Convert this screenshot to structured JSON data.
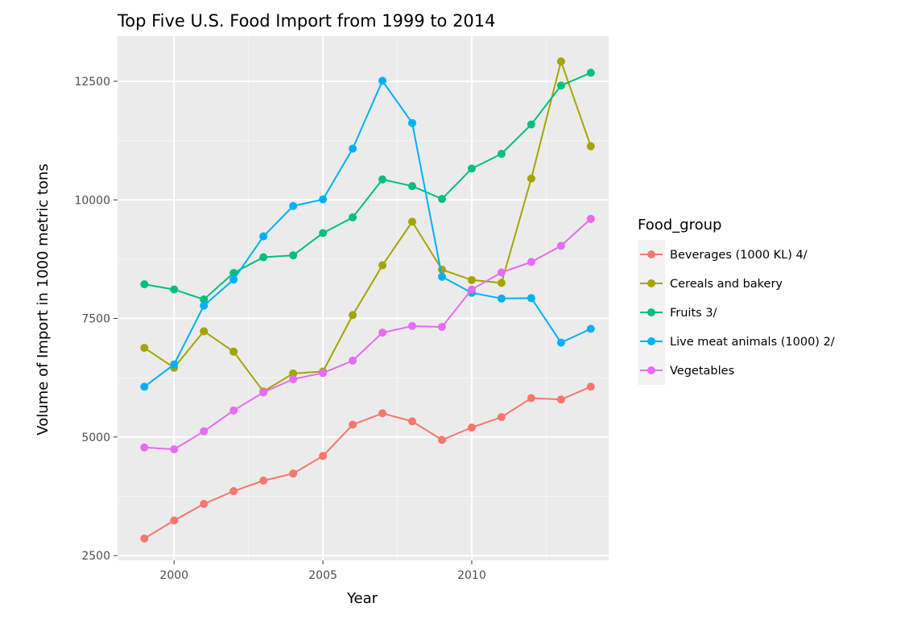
{
  "chart_data": {
    "type": "line",
    "title": "Top Five U.S. Food Import from 1999 to 2014",
    "xlabel": "Year",
    "ylabel": "Volume of Import in 1000 metric tons",
    "xlim": [
      1998.1,
      2014.6
    ],
    "ylim": [
      2400,
      13450
    ],
    "x_ticks": [
      2000,
      2005,
      2010
    ],
    "y_ticks": [
      2500,
      5000,
      7500,
      10000,
      12500
    ],
    "x": [
      1999,
      2000,
      2001,
      2002,
      2003,
      2004,
      2005,
      2006,
      2007,
      2008,
      2009,
      2010,
      2011,
      2012,
      2013,
      2014
    ],
    "grid": true,
    "legend_title": "Food_group",
    "legend_position": "right",
    "series": [
      {
        "name": "Beverages (1000 KL) 4/",
        "color": "#F8766D",
        "values": [
          2860,
          3240,
          3590,
          3860,
          4080,
          4230,
          4600,
          5260,
          5500,
          5330,
          4940,
          5200,
          5420,
          5820,
          5790,
          6060
        ]
      },
      {
        "name": "Cereals and bakery",
        "color": "#A3A500",
        "values": [
          6880,
          6460,
          7230,
          6800,
          5960,
          6340,
          6380,
          7570,
          8620,
          9540,
          8530,
          8310,
          8250,
          10450,
          12920,
          11130
        ]
      },
      {
        "name": "Fruits 3/",
        "color": "#00BF7D",
        "values": [
          8220,
          8110,
          7900,
          8460,
          8790,
          8830,
          9300,
          9630,
          10430,
          10290,
          10020,
          10660,
          10970,
          11590,
          12410,
          12680
        ]
      },
      {
        "name": "Live meat animals (1000) 2/",
        "color": "#00B0F6",
        "values": [
          6060,
          6530,
          7770,
          8320,
          9230,
          9870,
          10010,
          11080,
          12510,
          11620,
          8380,
          8040,
          7920,
          7930,
          6990,
          7280
        ]
      },
      {
        "name": "Vegetables",
        "color": "#E76BF3",
        "values": [
          4780,
          4740,
          5120,
          5560,
          5940,
          6220,
          6350,
          6610,
          7200,
          7340,
          7320,
          8110,
          8470,
          8690,
          9030,
          9600
        ]
      }
    ]
  }
}
